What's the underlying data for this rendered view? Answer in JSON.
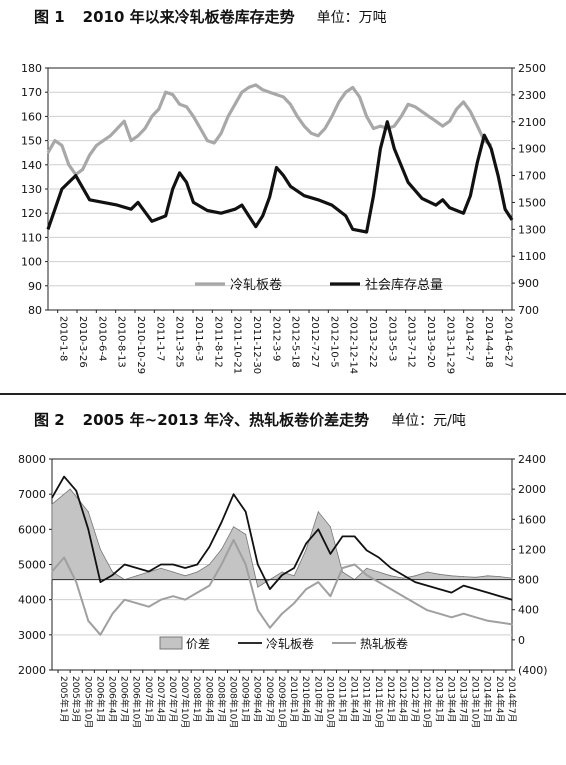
{
  "chart_data": [
    {
      "type": "line",
      "title_no": "图 1",
      "title": "2010 年以来冷轧板卷库存走势",
      "unit": "单位：万吨",
      "x_tick_labels": [
        "2010-1-8",
        "2010-3-26",
        "2010-6-4",
        "2010-8-13",
        "2010-10-29",
        "2011-1-7",
        "2011-3-25",
        "2011-6-3",
        "2011-8-12",
        "2011-10-21",
        "2011-12-30",
        "2012-3-9",
        "2012-5-18",
        "2012-7-27",
        "2012-10-5",
        "2012-12-14",
        "2013-2-22",
        "2013-5-3",
        "2013-7-12",
        "2013-9-20",
        "2013-11-29",
        "2014-2-7",
        "2014-4-18",
        "2014-6-27"
      ],
      "ylim_left": [
        80,
        180
      ],
      "yticks_left": [
        "80",
        "90",
        "100",
        "110",
        "120",
        "130",
        "140",
        "150",
        "160",
        "170",
        "180"
      ],
      "ylim_right": [
        700,
        2500
      ],
      "yticks_right": [
        "700",
        "900",
        "1100",
        "1300",
        "1500",
        "1700",
        "1900",
        "2100",
        "2300",
        "2500"
      ],
      "legend": [
        "冷轧板卷",
        "社会库存总量"
      ],
      "colors": {
        "cold_rolled": "#a8a8a8",
        "social_total": "#111111"
      },
      "series": [
        {
          "name": "冷轧板卷",
          "axis": "left",
          "points": [
            [
              0,
              145
            ],
            [
              1,
              150
            ],
            [
              2,
              148
            ],
            [
              3,
              140
            ],
            [
              4,
              136
            ],
            [
              5,
              138
            ],
            [
              6,
              144
            ],
            [
              7,
              148
            ],
            [
              8,
              150
            ],
            [
              9,
              152
            ],
            [
              10,
              155
            ],
            [
              11,
              158
            ],
            [
              12,
              150
            ],
            [
              13,
              152
            ],
            [
              14,
              155
            ],
            [
              15,
              160
            ],
            [
              16,
              163
            ],
            [
              17,
              170
            ],
            [
              18,
              169
            ],
            [
              19,
              165
            ],
            [
              20,
              164
            ],
            [
              21,
              160
            ],
            [
              22,
              155
            ],
            [
              23,
              150
            ],
            [
              24,
              149
            ],
            [
              25,
              153
            ],
            [
              26,
              160
            ],
            [
              27,
              165
            ],
            [
              28,
              170
            ],
            [
              29,
              172
            ],
            [
              30,
              173
            ],
            [
              31,
              171
            ],
            [
              32,
              170
            ],
            [
              33,
              169
            ],
            [
              34,
              168
            ],
            [
              35,
              165
            ],
            [
              36,
              160
            ],
            [
              37,
              156
            ],
            [
              38,
              153
            ],
            [
              39,
              152
            ],
            [
              40,
              155
            ],
            [
              41,
              160
            ],
            [
              42,
              166
            ],
            [
              43,
              170
            ],
            [
              44,
              172
            ],
            [
              45,
              168
            ],
            [
              46,
              160
            ],
            [
              47,
              155
            ],
            [
              48,
              156
            ],
            [
              49,
              155
            ],
            [
              50,
              156
            ],
            [
              51,
              160
            ],
            [
              52,
              165
            ],
            [
              53,
              164
            ],
            [
              54,
              162
            ],
            [
              55,
              160
            ],
            [
              56,
              158
            ],
            [
              57,
              156
            ],
            [
              58,
              158
            ],
            [
              59,
              163
            ],
            [
              60,
              166
            ],
            [
              61,
              162
            ],
            [
              62,
              156
            ],
            [
              63,
              150
            ],
            [
              64,
              148
            ]
          ]
        },
        {
          "name": "社会库存总量",
          "axis": "right",
          "points": [
            [
              0,
              1300
            ],
            [
              2,
              1600
            ],
            [
              4,
              1700
            ],
            [
              6,
              1520
            ],
            [
              8,
              1500
            ],
            [
              10,
              1480
            ],
            [
              12,
              1450
            ],
            [
              13,
              1500
            ],
            [
              15,
              1360
            ],
            [
              17,
              1400
            ],
            [
              18,
              1600
            ],
            [
              19,
              1720
            ],
            [
              20,
              1650
            ],
            [
              21,
              1500
            ],
            [
              23,
              1440
            ],
            [
              25,
              1420
            ],
            [
              27,
              1450
            ],
            [
              28,
              1480
            ],
            [
              29,
              1400
            ],
            [
              30,
              1320
            ],
            [
              31,
              1400
            ],
            [
              32,
              1540
            ],
            [
              33,
              1760
            ],
            [
              34,
              1700
            ],
            [
              35,
              1620
            ],
            [
              37,
              1550
            ],
            [
              39,
              1520
            ],
            [
              41,
              1480
            ],
            [
              43,
              1400
            ],
            [
              44,
              1300
            ],
            [
              46,
              1280
            ],
            [
              47,
              1550
            ],
            [
              48,
              1900
            ],
            [
              49,
              2100
            ],
            [
              50,
              1900
            ],
            [
              52,
              1650
            ],
            [
              54,
              1530
            ],
            [
              56,
              1480
            ],
            [
              57,
              1520
            ],
            [
              58,
              1460
            ],
            [
              60,
              1420
            ],
            [
              61,
              1550
            ],
            [
              62,
              1800
            ],
            [
              63,
              2000
            ],
            [
              64,
              1900
            ],
            [
              65,
              1700
            ],
            [
              66,
              1450
            ],
            [
              67,
              1370
            ]
          ]
        }
      ]
    },
    {
      "type": "line",
      "title_no": "图 2",
      "title": "2005 年~2013 年冷、热轧板卷价差走势",
      "unit": "单位：元/吨",
      "x_tick_labels": [
        "2005年1月",
        "2005年3月",
        "2005年10月",
        "2006年1月",
        "2006年4月",
        "2006年7月",
        "2006年10月",
        "2007年1月",
        "2007年4月",
        "2007年7月",
        "2007年10月",
        "2008年1月",
        "2008年4月",
        "2008年7月",
        "2008年10月",
        "2009年1月",
        "2009年4月",
        "2009年7月",
        "2009年10月",
        "2010年1月",
        "2010年4月",
        "2010年7月",
        "2010年10月",
        "2011年1月",
        "2011年4月",
        "2011年7月",
        "2011年10月",
        "2012年1月",
        "2012年4月",
        "2012年7月",
        "2012年10月",
        "2013年1月",
        "2013年4月",
        "2013年7月",
        "2013年10月",
        "2014年1月",
        "2014年4月",
        "2014年7月"
      ],
      "ylim_left": [
        2000,
        8000
      ],
      "yticks_left": [
        "2000",
        "3000",
        "4000",
        "5000",
        "6000",
        "7000",
        "8000"
      ],
      "ylim_right": [
        -400,
        2400
      ],
      "yticks_right": [
        "(400)",
        "0",
        "400",
        "800",
        "1200",
        "1600",
        "2000",
        "2400"
      ],
      "legend": [
        "价差",
        "冷轧板卷",
        "热轧板卷"
      ],
      "colors": {
        "spread_fill": "#c4c4c4",
        "cold": "#111111",
        "hot": "#a0a0a0"
      },
      "series": [
        {
          "name": "价差",
          "axis": "right",
          "points": [
            [
              0,
              1800
            ],
            [
              3,
              2000
            ],
            [
              6,
              1700
            ],
            [
              8,
              1200
            ],
            [
              10,
              900
            ],
            [
              12,
              800
            ],
            [
              14,
              850
            ],
            [
              16,
              900
            ],
            [
              18,
              950
            ],
            [
              20,
              900
            ],
            [
              22,
              850
            ],
            [
              24,
              900
            ],
            [
              26,
              1000
            ],
            [
              28,
              1200
            ],
            [
              30,
              1500
            ],
            [
              32,
              1400
            ],
            [
              34,
              700
            ],
            [
              36,
              800
            ],
            [
              38,
              900
            ],
            [
              40,
              850
            ],
            [
              42,
              1200
            ],
            [
              44,
              1700
            ],
            [
              46,
              1500
            ],
            [
              48,
              900
            ],
            [
              50,
              800
            ],
            [
              52,
              950
            ],
            [
              54,
              900
            ],
            [
              56,
              850
            ],
            [
              58,
              820
            ],
            [
              60,
              850
            ],
            [
              62,
              900
            ],
            [
              64,
              870
            ],
            [
              66,
              850
            ],
            [
              68,
              840
            ],
            [
              70,
              830
            ],
            [
              72,
              850
            ],
            [
              74,
              840
            ],
            [
              76,
              820
            ]
          ]
        },
        {
          "name": "冷轧板卷",
          "axis": "left",
          "points": [
            [
              0,
              6900
            ],
            [
              2,
              7500
            ],
            [
              4,
              7100
            ],
            [
              6,
              6000
            ],
            [
              8,
              4500
            ],
            [
              10,
              4700
            ],
            [
              12,
              5000
            ],
            [
              14,
              4900
            ],
            [
              16,
              4800
            ],
            [
              18,
              5000
            ],
            [
              20,
              5000
            ],
            [
              22,
              4900
            ],
            [
              24,
              5000
            ],
            [
              26,
              5500
            ],
            [
              28,
              6200
            ],
            [
              30,
              7000
            ],
            [
              32,
              6500
            ],
            [
              34,
              5000
            ],
            [
              36,
              4300
            ],
            [
              38,
              4700
            ],
            [
              40,
              4900
            ],
            [
              42,
              5600
            ],
            [
              44,
              6000
            ],
            [
              46,
              5300
            ],
            [
              48,
              5800
            ],
            [
              50,
              5800
            ],
            [
              52,
              5400
            ],
            [
              54,
              5200
            ],
            [
              56,
              4900
            ],
            [
              58,
              4700
            ],
            [
              60,
              4500
            ],
            [
              62,
              4400
            ],
            [
              64,
              4300
            ],
            [
              66,
              4200
            ],
            [
              68,
              4400
            ],
            [
              70,
              4300
            ],
            [
              72,
              4200
            ],
            [
              74,
              4100
            ],
            [
              76,
              4000
            ]
          ]
        },
        {
          "name": "热轧板卷",
          "axis": "left",
          "points": [
            [
              0,
              4800
            ],
            [
              2,
              5200
            ],
            [
              4,
              4500
            ],
            [
              6,
              3400
            ],
            [
              8,
              3000
            ],
            [
              10,
              3600
            ],
            [
              12,
              4000
            ],
            [
              14,
              3900
            ],
            [
              16,
              3800
            ],
            [
              18,
              4000
            ],
            [
              20,
              4100
            ],
            [
              22,
              4000
            ],
            [
              24,
              4200
            ],
            [
              26,
              4400
            ],
            [
              28,
              5000
            ],
            [
              30,
              5700
            ],
            [
              32,
              5000
            ],
            [
              34,
              3700
            ],
            [
              36,
              3200
            ],
            [
              38,
              3600
            ],
            [
              40,
              3900
            ],
            [
              42,
              4300
            ],
            [
              44,
              4500
            ],
            [
              46,
              4100
            ],
            [
              48,
              4900
            ],
            [
              50,
              5000
            ],
            [
              52,
              4700
            ],
            [
              54,
              4500
            ],
            [
              56,
              4300
            ],
            [
              58,
              4100
            ],
            [
              60,
              3900
            ],
            [
              62,
              3700
            ],
            [
              64,
              3600
            ],
            [
              66,
              3500
            ],
            [
              68,
              3600
            ],
            [
              70,
              3500
            ],
            [
              72,
              3400
            ],
            [
              74,
              3350
            ],
            [
              76,
              3300
            ]
          ]
        }
      ]
    }
  ]
}
